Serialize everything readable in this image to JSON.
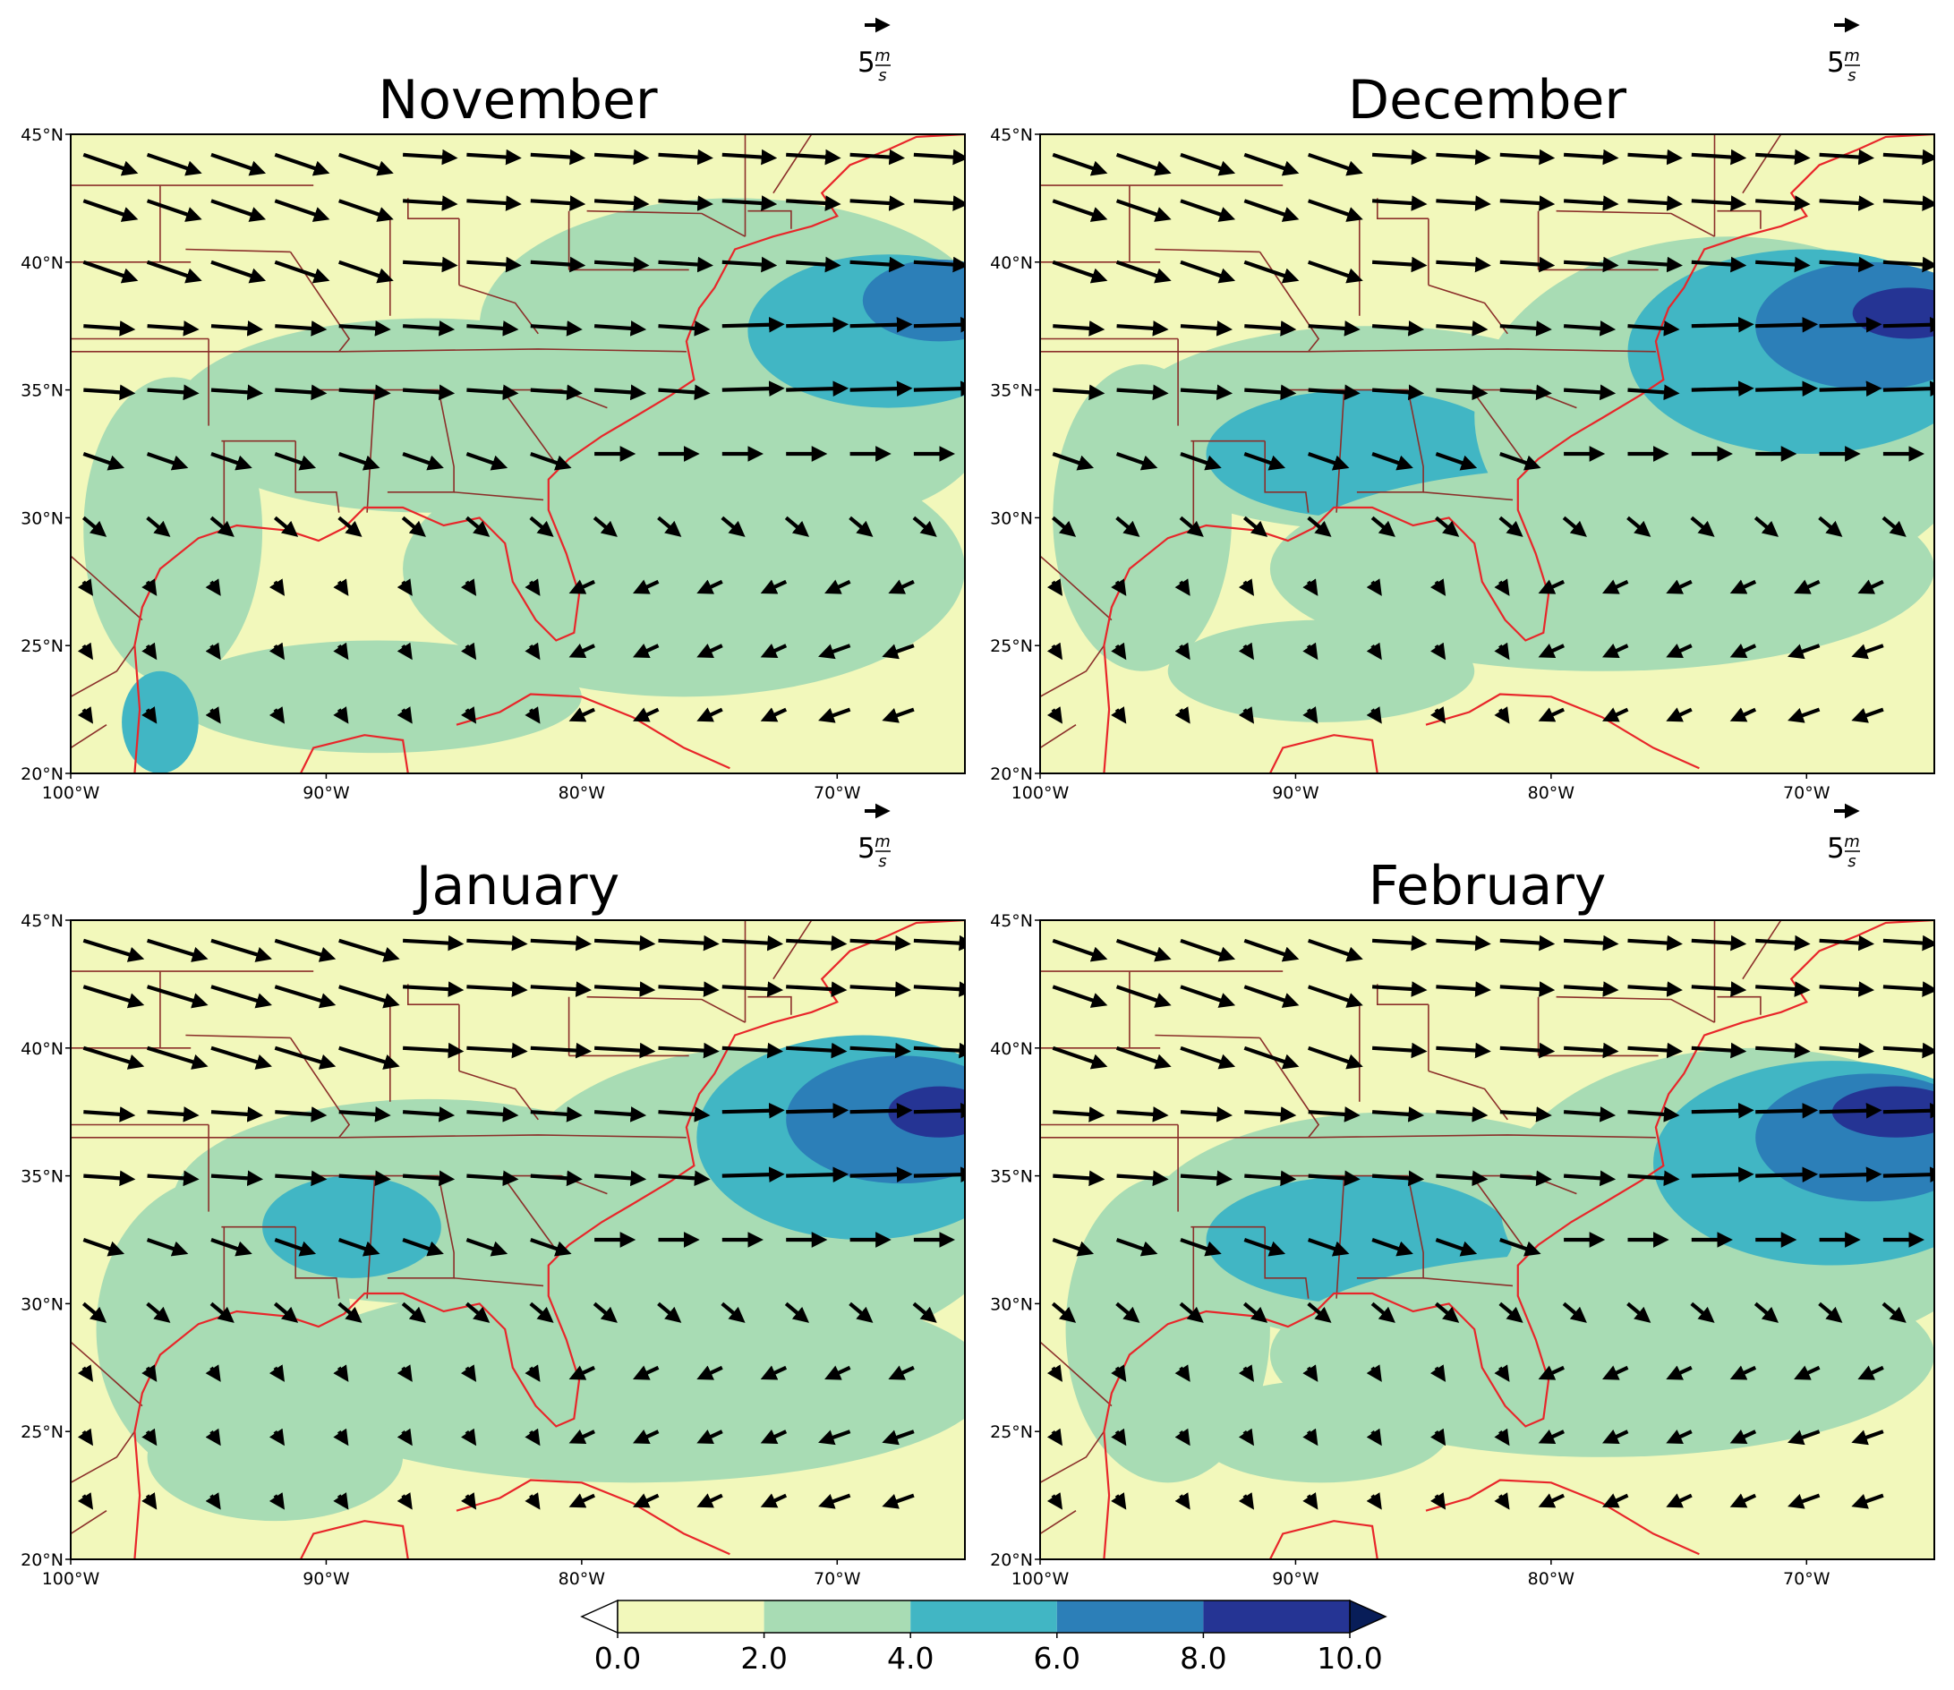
{
  "chart_data": {
    "type": "heatmap",
    "panels": [
      {
        "title": "November"
      },
      {
        "title": "December"
      },
      {
        "title": "January"
      },
      {
        "title": "February"
      }
    ],
    "lat_ticks": [
      {
        "value": 45,
        "label": "45°N"
      },
      {
        "value": 40,
        "label": "40°N"
      },
      {
        "value": 35,
        "label": "35°N"
      },
      {
        "value": 30,
        "label": "30°N"
      },
      {
        "value": 25,
        "label": "25°N"
      },
      {
        "value": 20,
        "label": "20°N"
      }
    ],
    "lon_ticks": [
      {
        "value": -100,
        "label": "100°W"
      },
      {
        "value": -90,
        "label": "90°W"
      },
      {
        "value": -80,
        "label": "80°W"
      },
      {
        "value": -70,
        "label": "70°W"
      }
    ],
    "lon_range": [
      -100,
      -65
    ],
    "lat_range": [
      20,
      45
    ],
    "reference_vector": {
      "magnitude": "5",
      "unit_num": "m",
      "unit_den": "s"
    },
    "colorbar": {
      "levels": [
        0.0,
        2.0,
        4.0,
        6.0,
        8.0,
        10.0
      ],
      "tick_labels": [
        "0.0",
        "2.0",
        "4.0",
        "6.0",
        "8.0",
        "10.0"
      ],
      "colors": [
        "#f2f8bb",
        "#a8dcb4",
        "#41b6c4",
        "#2c7fb8",
        "#253494"
      ],
      "extend": "both"
    },
    "boundary_colors": {
      "coastline": "#e8262a",
      "state_lines": "#8b2f2a"
    }
  }
}
